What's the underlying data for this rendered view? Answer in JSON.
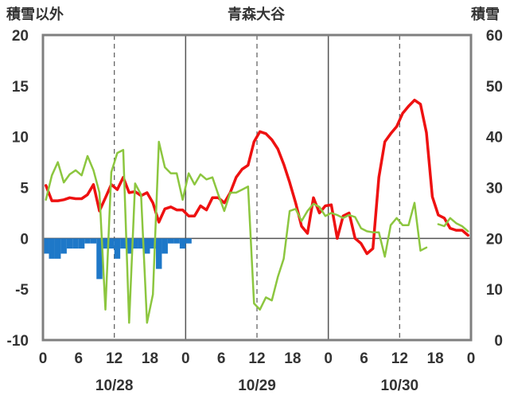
{
  "chart_data": {
    "type": "line",
    "title": "青森大谷",
    "left_axis_label": "積雪以外",
    "right_axis_label": "積雪",
    "left_ylim": [
      -10,
      20
    ],
    "left_yticks": [
      "20",
      "15",
      "10",
      "5",
      "0",
      "-5",
      "-10"
    ],
    "right_ylim": [
      0,
      60
    ],
    "right_yticks": [
      "60",
      "50",
      "40",
      "30",
      "20",
      "10",
      "0"
    ],
    "xlim": [
      0,
      72
    ],
    "xticks": [
      "0",
      "6",
      "12",
      "18",
      "0",
      "6",
      "12",
      "18",
      "0",
      "6",
      "12",
      "18",
      "0"
    ],
    "date_labels": [
      {
        "label": "10/28",
        "at": 12
      },
      {
        "label": "10/29",
        "at": 36
      },
      {
        "label": "10/30",
        "at": 60
      }
    ],
    "grid": {
      "dashed_at": [
        12,
        36,
        60
      ],
      "solid_at": [
        24,
        48
      ]
    },
    "colors": {
      "temperature": "#ee1111",
      "wind": "#8cc63f",
      "precipitation": "#1e78c8",
      "snow_depth": "#7030a0"
    },
    "series": [
      {
        "name": "",
        "axis": "left",
        "color": "#ee1111",
        "points": [
          [
            0,
            5.2
          ],
          [
            1,
            3.7
          ],
          [
            2,
            3.7
          ],
          [
            3,
            3.8
          ],
          [
            4,
            4.0
          ],
          [
            5,
            3.9
          ],
          [
            6,
            3.9
          ],
          [
            7,
            4.3
          ],
          [
            8,
            5.3
          ],
          [
            9,
            2.7
          ],
          [
            10,
            4.0
          ],
          [
            11,
            5.3
          ],
          [
            12,
            4.8
          ],
          [
            13,
            6.0
          ],
          [
            14,
            4.5
          ],
          [
            15,
            4.6
          ],
          [
            16,
            4.2
          ],
          [
            17,
            4.5
          ],
          [
            18,
            3.5
          ],
          [
            19,
            1.6
          ],
          [
            20,
            2.9
          ],
          [
            21,
            3.1
          ],
          [
            22,
            2.8
          ],
          [
            23,
            2.8
          ],
          [
            24,
            2.2
          ],
          [
            25,
            2.2
          ],
          [
            26,
            3.2
          ],
          [
            27,
            2.8
          ],
          [
            28,
            4.0
          ],
          [
            29,
            4.0
          ],
          [
            30,
            3.5
          ],
          [
            31,
            4.5
          ],
          [
            32,
            6.0
          ],
          [
            33,
            6.8
          ],
          [
            34,
            7.2
          ],
          [
            35,
            9.5
          ],
          [
            36,
            10.5
          ],
          [
            37,
            10.3
          ],
          [
            38,
            9.7
          ],
          [
            39,
            8.8
          ],
          [
            40,
            7.3
          ],
          [
            41,
            5.5
          ],
          [
            42,
            3.5
          ],
          [
            43,
            1.2
          ],
          [
            44,
            0.5
          ],
          [
            45,
            4.0
          ],
          [
            46,
            2.5
          ],
          [
            47,
            3.2
          ],
          [
            48,
            3.3
          ],
          [
            49,
            0.0
          ],
          [
            50,
            2.2
          ],
          [
            51,
            2.5
          ],
          [
            52,
            0.0
          ],
          [
            53,
            -0.5
          ],
          [
            54,
            -1.5
          ],
          [
            55,
            -1.0
          ],
          [
            56,
            6.0
          ],
          [
            57,
            9.5
          ],
          [
            58,
            10.3
          ],
          [
            59,
            11.0
          ],
          [
            60,
            12.3
          ],
          [
            61,
            13.0
          ],
          [
            62,
            13.6
          ],
          [
            63,
            13.2
          ],
          [
            64,
            10.4
          ],
          [
            65,
            4.1
          ],
          [
            66,
            2.3
          ],
          [
            67,
            2.0
          ],
          [
            68,
            1.0
          ],
          [
            69,
            0.8
          ],
          [
            70,
            0.8
          ],
          [
            71,
            0.3
          ]
        ]
      },
      {
        "name": "",
        "axis": "left",
        "color": "#8cc63f",
        "points": [
          [
            0,
            3.8
          ],
          [
            1,
            6.2
          ],
          [
            2,
            7.5
          ],
          [
            3,
            5.5
          ],
          [
            4,
            6.3
          ],
          [
            5,
            6.7
          ],
          [
            6,
            6.2
          ],
          [
            7,
            8.1
          ],
          [
            8,
            6.7
          ],
          [
            9,
            4.5
          ],
          [
            10,
            -7.0
          ],
          [
            11,
            6.5
          ],
          [
            12,
            8.4
          ],
          [
            13,
            8.7
          ],
          [
            14,
            -8.3
          ],
          [
            15,
            5.4
          ],
          [
            16,
            4.3
          ],
          [
            17,
            -8.3
          ],
          [
            18,
            -5.5
          ],
          [
            19,
            9.5
          ],
          [
            20,
            7.0
          ],
          [
            21,
            6.4
          ],
          [
            22,
            6.4
          ],
          [
            23,
            3.8
          ],
          [
            24,
            6.4
          ],
          [
            25,
            5.3
          ],
          [
            26,
            6.3
          ],
          [
            27,
            5.8
          ],
          [
            28,
            6.0
          ],
          [
            29,
            4.3
          ],
          [
            30,
            2.7
          ],
          [
            31,
            4.5
          ],
          [
            32,
            4.5
          ],
          [
            33,
            4.8
          ],
          [
            34,
            5.1
          ],
          [
            35,
            -6.4
          ],
          [
            36,
            -7.0
          ],
          [
            37,
            -5.8
          ],
          [
            38,
            -6.1
          ],
          [
            39,
            -3.8
          ],
          [
            40,
            -2.0
          ],
          [
            41,
            2.7
          ],
          [
            42,
            2.9
          ],
          [
            43,
            1.7
          ],
          [
            44,
            2.7
          ],
          [
            45,
            3.4
          ],
          [
            46,
            3.1
          ],
          [
            47,
            2.2
          ],
          [
            48,
            2.5
          ],
          [
            49,
            2.3
          ],
          [
            50,
            2.0
          ],
          [
            51,
            2.3
          ],
          [
            52,
            2.1
          ],
          [
            53,
            1.0
          ],
          [
            54,
            0.7
          ],
          [
            55,
            0.6
          ],
          [
            56,
            0.6
          ],
          [
            57,
            -1.8
          ],
          [
            58,
            1.3
          ],
          [
            59,
            2.0
          ],
          [
            60,
            1.3
          ],
          [
            61,
            1.3
          ],
          [
            62,
            3.5
          ],
          [
            63,
            -1.2
          ],
          [
            64,
            -0.9
          ],
          [
            65,
            null
          ],
          [
            66,
            1.4
          ],
          [
            67,
            1.2
          ],
          [
            68,
            2.0
          ],
          [
            69,
            1.5
          ],
          [
            70,
            1.2
          ],
          [
            71,
            0.7
          ]
        ]
      },
      {
        "name": "",
        "axis": "left",
        "type": "bar",
        "color": "#1e78c8",
        "points": [
          [
            0,
            -1.5
          ],
          [
            1,
            -2.0
          ],
          [
            2,
            -2.0
          ],
          [
            3,
            -1.5
          ],
          [
            4,
            -1.0
          ],
          [
            5,
            -1.0
          ],
          [
            6,
            -1.0
          ],
          [
            7,
            -0.5
          ],
          [
            8,
            -0.5
          ],
          [
            9,
            -4.0
          ],
          [
            10,
            -1.0
          ],
          [
            11,
            -1.0
          ],
          [
            12,
            -2.0
          ],
          [
            13,
            -1.0
          ],
          [
            14,
            -1.5
          ],
          [
            15,
            -1.0
          ],
          [
            16,
            -1.0
          ],
          [
            17,
            -1.5
          ],
          [
            18,
            -1.0
          ],
          [
            19,
            -3.0
          ],
          [
            20,
            -1.5
          ],
          [
            21,
            -0.5
          ],
          [
            22,
            -0.5
          ],
          [
            23,
            -1.0
          ],
          [
            24,
            -0.5
          ]
        ]
      },
      {
        "name": "",
        "axis": "right",
        "color": "#7030a0",
        "points": [
          [
            10,
            0
          ],
          [
            72,
            0
          ]
        ]
      }
    ]
  }
}
